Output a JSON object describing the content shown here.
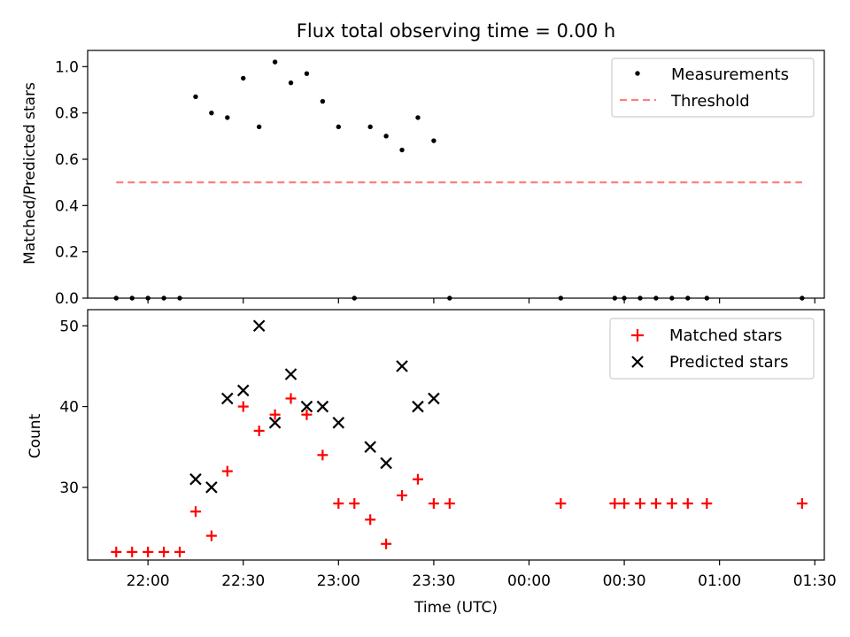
{
  "chart_data": [
    {
      "type": "scatter",
      "title": "Flux total observing time = 0.00 h",
      "xlabel": "",
      "ylabel": "Matched/Predicted stars",
      "ylim": [
        0,
        1.07
      ],
      "yticks": [
        0,
        0.2,
        0.4,
        0.6,
        0.8,
        1.0
      ],
      "ytick_labels": [
        "0.0",
        "0.2",
        "0.4",
        "0.6",
        "0.8",
        "1.0"
      ],
      "legend_position": "top-right",
      "series": [
        {
          "name": "Measurements",
          "color": "#000000",
          "marker": "dot",
          "x": [
            "21:50",
            "21:55",
            "22:00",
            "22:05",
            "22:10",
            "22:15",
            "22:20",
            "22:25",
            "22:30",
            "22:35",
            "22:40",
            "22:45",
            "22:50",
            "22:55",
            "23:00",
            "23:05",
            "23:10",
            "23:15",
            "23:20",
            "23:25",
            "23:30",
            "23:35",
            "00:10",
            "00:27",
            "00:30",
            "00:35",
            "00:40",
            "00:45",
            "00:50",
            "00:56",
            "01:26"
          ],
          "values": [
            0,
            0,
            0,
            0,
            0,
            0.87,
            0.8,
            0.78,
            0.95,
            0.74,
            1.02,
            0.93,
            0.97,
            0.85,
            0.74,
            0,
            0.74,
            0.7,
            0.64,
            0.78,
            0.68,
            0,
            0,
            0,
            0,
            0,
            0,
            0,
            0,
            0,
            0
          ]
        },
        {
          "name": "Threshold",
          "color": "#ff7f7f",
          "marker": "dashed-line",
          "x": [
            "21:50",
            "01:26"
          ],
          "values": [
            0.5,
            0.5
          ]
        }
      ]
    },
    {
      "type": "scatter",
      "title": "",
      "xlabel": "Time (UTC)",
      "ylabel": "Count",
      "ylim": [
        21,
        52
      ],
      "yticks": [
        30,
        40,
        50
      ],
      "ytick_labels": [
        "30",
        "40",
        "50"
      ],
      "xlim": [
        "21:41",
        "01:33"
      ],
      "xticks": [
        "22:00",
        "22:30",
        "23:00",
        "23:30",
        "00:00",
        "00:30",
        "01:00",
        "01:30"
      ],
      "legend_position": "top-right",
      "series": [
        {
          "name": "Matched stars",
          "color": "#ff0000",
          "marker": "plus",
          "x": [
            "21:50",
            "21:55",
            "22:00",
            "22:05",
            "22:10",
            "22:15",
            "22:20",
            "22:25",
            "22:30",
            "22:35",
            "22:40",
            "22:45",
            "22:50",
            "22:55",
            "23:00",
            "23:05",
            "23:10",
            "23:15",
            "23:20",
            "23:25",
            "23:30",
            "23:35",
            "00:10",
            "00:27",
            "00:30",
            "00:35",
            "00:40",
            "00:45",
            "00:50",
            "00:56",
            "01:26"
          ],
          "values": [
            22,
            22,
            22,
            22,
            22,
            27,
            24,
            32,
            40,
            37,
            39,
            41,
            39,
            34,
            28,
            28,
            26,
            23,
            29,
            31,
            28,
            28,
            28,
            28,
            28,
            28,
            28,
            28,
            28,
            28,
            28
          ]
        },
        {
          "name": "Predicted stars",
          "color": "#000000",
          "marker": "x",
          "x": [
            "22:15",
            "22:20",
            "22:25",
            "22:30",
            "22:35",
            "22:40",
            "22:45",
            "22:50",
            "22:55",
            "23:00",
            "23:10",
            "23:15",
            "23:20",
            "23:25",
            "23:30"
          ],
          "values": [
            31,
            30,
            41,
            42,
            50,
            38,
            44,
            40,
            40,
            38,
            35,
            33,
            45,
            40,
            41
          ]
        }
      ]
    }
  ]
}
